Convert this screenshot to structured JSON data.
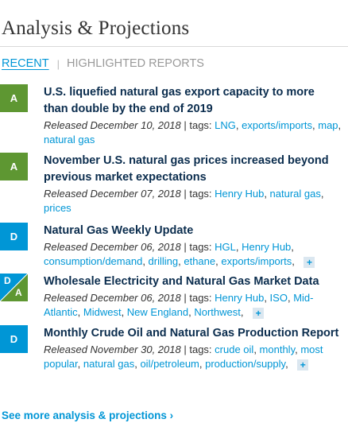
{
  "page": {
    "title": "Analysis & Projections"
  },
  "tabs": {
    "recent": "RECENT",
    "separator": "|",
    "highlighted": "HIGHLIGHTED REPORTS"
  },
  "items": [
    {
      "badge": "A",
      "badge_color": "#5e9732",
      "title": "U.S. liquefied natural gas export capacity to more than double by the end of 2019",
      "released": "Released December 10, 2018",
      "tags_label": "| tags:",
      "tags": [
        "LNG",
        "exports/imports",
        "map",
        "natural gas"
      ]
    },
    {
      "badge": "A",
      "badge_color": "#5e9732",
      "title": "November U.S. natural gas prices increased beyond previous market expectations",
      "released": "Released December 07, 2018",
      "tags_label": "| tags:",
      "tags": [
        "Henry Hub",
        "natural gas",
        "prices"
      ]
    },
    {
      "badge": "D",
      "badge_color": "#0096d6",
      "title": "Natural Gas Weekly Update",
      "released": "Released December 06, 2018",
      "tags_label": "| tags:",
      "tags": [
        "HGL",
        "Henry Hub",
        "consumption/demand",
        "drilling",
        "ethane",
        "exports/imports"
      ],
      "more": "+"
    },
    {
      "badge_top": "D",
      "badge_bottom": "A",
      "title": "Wholesale Electricity and Natural Gas Market Data",
      "released": "Released December 06, 2018",
      "tags_label": "| tags:",
      "tags": [
        "Henry Hub",
        "ISO",
        "Mid-Atlantic",
        "Midwest",
        "New England",
        "Northwest"
      ],
      "more": "+"
    },
    {
      "badge": "D",
      "badge_color": "#0096d6",
      "title": "Monthly Crude Oil and Natural Gas Production Report",
      "released": "Released November 30, 2018",
      "tags_label": "| tags:",
      "tags": [
        "crude oil",
        "monthly",
        "most popular",
        "natural gas",
        "oil/petroleum",
        "production/supply"
      ],
      "more": "+"
    }
  ],
  "footer": {
    "see_more": "See more analysis & projections ›"
  }
}
